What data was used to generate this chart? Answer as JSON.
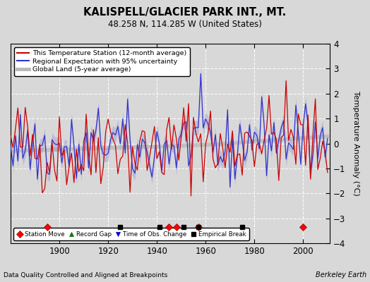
{
  "title": "KALISPELL/GLACIER PARK INT., MT.",
  "subtitle": "48.258 N, 114.285 W (United States)",
  "ylabel": "Temperature Anomaly (°C)",
  "xlabel_note": "Data Quality Controlled and Aligned at Breakpoints",
  "credit": "Berkeley Earth",
  "xlim": [
    1880,
    2011
  ],
  "ylim": [
    -4,
    4
  ],
  "yticks": [
    -4,
    -3,
    -2,
    -1,
    0,
    1,
    2,
    3,
    4
  ],
  "xticks": [
    1900,
    1920,
    1940,
    1960,
    1980,
    2000
  ],
  "bg_color": "#d8d8d8",
  "plot_bg_color": "#d8d8d8",
  "station_moves": [
    1895,
    1945,
    1948,
    1957,
    2000
  ],
  "empirical_breaks": [
    1925,
    1941,
    1951,
    1957,
    1975
  ],
  "legend_line_colors": [
    "#cc0000",
    "#3333cc",
    "#b0b0b0"
  ],
  "legend_labels": [
    "This Temperature Station (12-month average)",
    "Regional Expectation with 95% uncertainty",
    "Global Land (5-year average)"
  ]
}
